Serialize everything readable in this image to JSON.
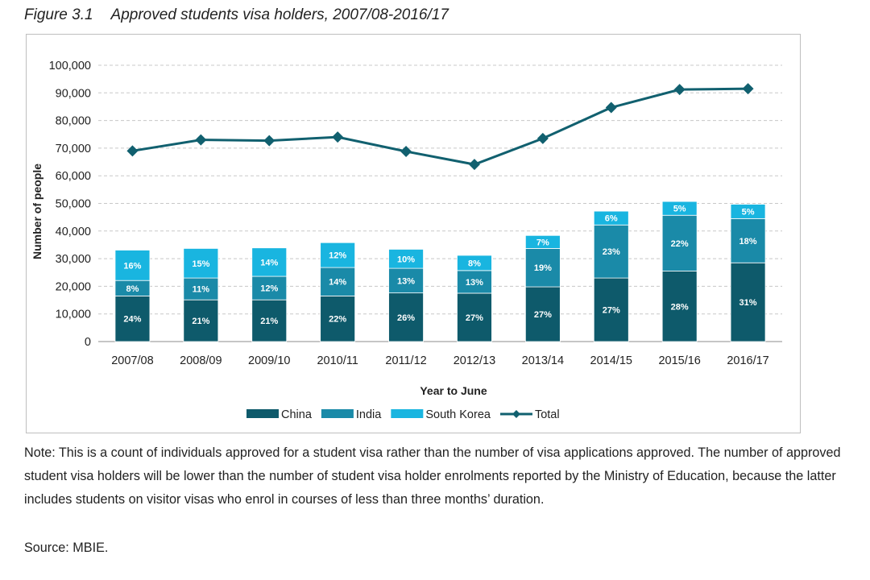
{
  "figure": {
    "number": "Figure 3.1",
    "title": "Approved students visa holders, 2007/08-2016/17"
  },
  "chart_data": {
    "type": "bar",
    "stacked": true,
    "title": "Approved students visa holders, 2007/08-2016/17",
    "xlabel": "Year to June",
    "ylabel": "Number of people",
    "ylim": [
      0,
      100000
    ],
    "yticks": [
      0,
      10000,
      20000,
      30000,
      40000,
      50000,
      60000,
      70000,
      80000,
      90000,
      100000
    ],
    "ytick_labels": [
      "0",
      "10,000",
      "20,000",
      "30,000",
      "40,000",
      "50,000",
      "60,000",
      "70,000",
      "80,000",
      "90,000",
      "100,000"
    ],
    "grid": true,
    "legend_position": "bottom",
    "categories": [
      "2007/08",
      "2008/09",
      "2009/10",
      "2010/11",
      "2011/12",
      "2012/13",
      "2013/14",
      "2014/15",
      "2015/16",
      "2016/17"
    ],
    "series": [
      {
        "name": "China",
        "kind": "bar",
        "color": "#0e5a6b",
        "values": [
          16500,
          15100,
          15100,
          16500,
          17600,
          17500,
          19800,
          23000,
          25500,
          28500
        ],
        "labels": [
          "24%",
          "21%",
          "21%",
          "22%",
          "26%",
          "27%",
          "27%",
          "27%",
          "28%",
          "31%"
        ]
      },
      {
        "name": "India",
        "kind": "bar",
        "color": "#1a8aa8",
        "values": [
          5600,
          7900,
          8500,
          10300,
          8900,
          8200,
          13900,
          19200,
          20200,
          16000
        ],
        "labels": [
          "8%",
          "11%",
          "12%",
          "14%",
          "13%",
          "13%",
          "19%",
          "23%",
          "22%",
          "18%"
        ]
      },
      {
        "name": "South Korea",
        "kind": "bar",
        "color": "#19b5e0",
        "values": [
          11000,
          10700,
          10300,
          9000,
          6900,
          5500,
          4700,
          5000,
          5000,
          5200
        ],
        "labels": [
          "16%",
          "15%",
          "14%",
          "12%",
          "10%",
          "8%",
          "7%",
          "6%",
          "5%",
          "5%"
        ]
      },
      {
        "name": "Total",
        "kind": "line",
        "color": "#11606f",
        "values": [
          69000,
          73000,
          72700,
          74000,
          68800,
          64100,
          73500,
          84700,
          91200,
          91500
        ]
      }
    ]
  },
  "note": "Note: This is a count of individuals approved for a student visa rather than the number of visa applications approved. The number of approved student visa holders will be lower than the number of student visa holder enrolments reported by the Ministry of Education, because the latter includes students on visitor visas who enrol in courses of less than three months’ duration.",
  "source": "Source: MBIE."
}
